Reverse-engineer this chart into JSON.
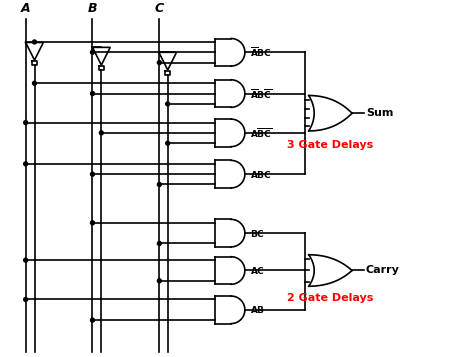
{
  "bg_color": "#ffffff",
  "input_labels": [
    "A",
    "B",
    "C"
  ],
  "and_labels": [
    "ABC_bar",
    "AB_barC_bar",
    "AB_barC_bar2",
    "ABC",
    "BC",
    "AC",
    "AB"
  ],
  "delay_sum": "3 Gate Delays",
  "delay_carry": "2 Gate Delays",
  "sum_label": "Sum",
  "carry_label": "Carry"
}
